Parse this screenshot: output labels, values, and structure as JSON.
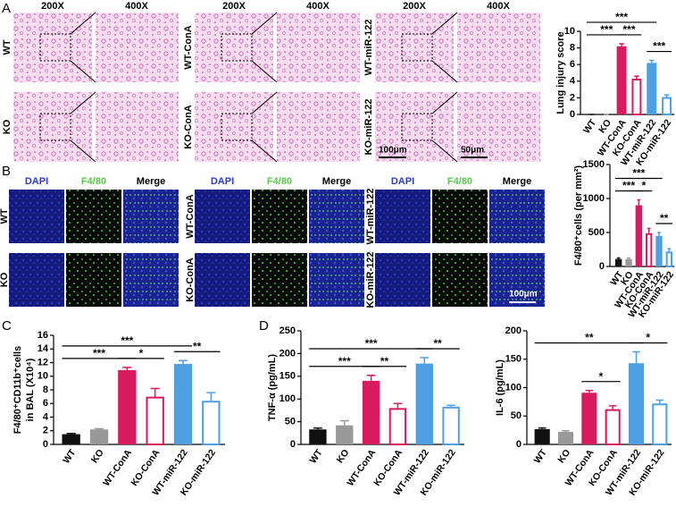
{
  "panel_letters": [
    "A",
    "B",
    "C",
    "D"
  ],
  "histology": {
    "magnifications": [
      "200X",
      "400X"
    ],
    "groups": [
      {
        "rows": [
          "WT",
          "KO"
        ]
      },
      {
        "rows": [
          "WT-ConA",
          "KO-ConA"
        ]
      },
      {
        "rows": [
          "WT-miR-122",
          "KO-miR-122"
        ]
      }
    ],
    "scale_bars": [
      "100μm",
      "50μm"
    ]
  },
  "immunofluorescence": {
    "channels": [
      "DAPI",
      "F4/80",
      "Merge"
    ],
    "groups": [
      {
        "rows": [
          "WT",
          "KO"
        ]
      },
      {
        "rows": [
          "WT-ConA",
          "KO-ConA"
        ]
      },
      {
        "rows": [
          "WT-miR-122",
          "KO-miR-122"
        ]
      }
    ],
    "scale_bar": "100μm"
  },
  "chart_data": [
    {
      "type": "bar",
      "ylabel": "Lung injury score",
      "categories": [
        "WT",
        "KO",
        "WT-ConA",
        "KO-ConA",
        "WT-miR-122",
        "KO-miR-122"
      ],
      "values": [
        0,
        0,
        8.2,
        4.3,
        6.2,
        2.1
      ],
      "errors": [
        0,
        0,
        0.3,
        0.3,
        0.3,
        0.25
      ],
      "colors": [
        "#111111",
        "#999999",
        "#d81b5e",
        "#d81b5e",
        "#4f9fe3",
        "#4f9fe3"
      ],
      "hollow": [
        false,
        false,
        false,
        true,
        false,
        true
      ],
      "ylim": [
        0,
        10
      ],
      "yticks": [
        0,
        2,
        4,
        6,
        8,
        10
      ],
      "comparisons": [
        {
          "from": "WT",
          "to": "WT-ConA",
          "label": "***"
        },
        {
          "from": "WT-ConA",
          "to": "KO-ConA",
          "label": "***"
        },
        {
          "from": "WT",
          "to": "WT-miR-122",
          "label": "***"
        },
        {
          "from": "WT-miR-122",
          "to": "KO-miR-122",
          "label": "***"
        }
      ]
    },
    {
      "type": "bar",
      "ylabel": "F4/80⁺cells (per mm²)",
      "categories": [
        "WT",
        "KO",
        "WT-ConA",
        "KO-ConA",
        "WT-miR-122",
        "KO-miR-122"
      ],
      "values": [
        110,
        110,
        900,
        490,
        450,
        220
      ],
      "errors": [
        15,
        15,
        80,
        70,
        50,
        40
      ],
      "colors": [
        "#111111",
        "#999999",
        "#d81b5e",
        "#d81b5e",
        "#4f9fe3",
        "#4f9fe3"
      ],
      "hollow": [
        false,
        false,
        false,
        true,
        false,
        true
      ],
      "ylim": [
        0,
        1500
      ],
      "yticks": [
        0,
        500,
        1000,
        1500
      ],
      "comparisons": [
        {
          "from": "WT",
          "to": "WT-ConA",
          "label": "***"
        },
        {
          "from": "WT-ConA",
          "to": "KO-ConA",
          "label": "*"
        },
        {
          "from": "WT",
          "to": "WT-miR-122",
          "label": "***"
        },
        {
          "from": "WT-miR-122",
          "to": "KO-miR-122",
          "label": "**"
        }
      ]
    },
    {
      "type": "bar",
      "ylabel": [
        "F4/80⁺CD11b⁺cells",
        "in BAL (X10⁴)"
      ],
      "categories": [
        "WT",
        "KO",
        "WT-ConA",
        "KO-ConA",
        "WT-miR-122",
        "KO-miR-122"
      ],
      "values": [
        1.5,
        2.2,
        10.9,
        7.0,
        11.8,
        6.4
      ],
      "errors": [
        0.1,
        0.1,
        0.4,
        1.2,
        0.5,
        1.2
      ],
      "colors": [
        "#111111",
        "#999999",
        "#d81b5e",
        "#d81b5e",
        "#4f9fe3",
        "#4f9fe3"
      ],
      "hollow": [
        false,
        false,
        false,
        true,
        false,
        true
      ],
      "ylim": [
        0,
        16
      ],
      "yticks": [
        0,
        2,
        4,
        6,
        8,
        10,
        12,
        14,
        16
      ],
      "comparisons": [
        {
          "from": "WT",
          "to": "WT-ConA",
          "label": "***"
        },
        {
          "from": "WT-ConA",
          "to": "KO-ConA",
          "label": "*"
        },
        {
          "from": "WT",
          "to": "WT-miR-122",
          "label": "***"
        },
        {
          "from": "WT-miR-122",
          "to": "KO-miR-122",
          "label": "**"
        }
      ]
    },
    {
      "type": "bar",
      "ylabel": "TNF-α (pg/mL)",
      "categories": [
        "WT",
        "KO",
        "WT-ConA",
        "KO-ConA",
        "WT-miR-122",
        "KO-miR-122"
      ],
      "values": [
        33,
        42,
        140,
        80,
        178,
        83
      ],
      "errors": [
        3,
        10,
        12,
        10,
        13,
        3
      ],
      "colors": [
        "#111111",
        "#999999",
        "#d81b5e",
        "#d81b5e",
        "#4f9fe3",
        "#4f9fe3"
      ],
      "hollow": [
        false,
        false,
        false,
        true,
        false,
        true
      ],
      "ylim": [
        0,
        250
      ],
      "yticks": [
        0,
        50,
        100,
        150,
        200,
        250
      ],
      "comparisons": [
        {
          "from": "WT",
          "to": "WT-ConA",
          "label": "***"
        },
        {
          "from": "WT-ConA",
          "to": "KO-ConA",
          "label": "**"
        },
        {
          "from": "WT",
          "to": "WT-miR-122",
          "label": "***"
        },
        {
          "from": "WT-miR-122",
          "to": "KO-miR-122",
          "label": "**"
        }
      ]
    },
    {
      "type": "bar",
      "ylabel": "IL-6 (pg/mL)",
      "categories": [
        "WT",
        "KO",
        "WT-ConA",
        "KO-ConA",
        "WT-miR-122",
        "KO-miR-122"
      ],
      "values": [
        27,
        22,
        91,
        62,
        143,
        72
      ],
      "errors": [
        2,
        2,
        4,
        6,
        20,
        6
      ],
      "colors": [
        "#111111",
        "#999999",
        "#d81b5e",
        "#d81b5e",
        "#4f9fe3",
        "#4f9fe3"
      ],
      "hollow": [
        false,
        false,
        false,
        true,
        false,
        true
      ],
      "ylim": [
        0,
        200
      ],
      "yticks": [
        0,
        50,
        100,
        150,
        200
      ],
      "comparisons": [
        {
          "from": "WT-ConA",
          "to": "KO-ConA",
          "label": "*"
        },
        {
          "from": "WT",
          "to": "WT-miR-122",
          "label": "**"
        },
        {
          "from": "WT-miR-122",
          "to": "KO-miR-122",
          "label": "*"
        }
      ]
    }
  ]
}
